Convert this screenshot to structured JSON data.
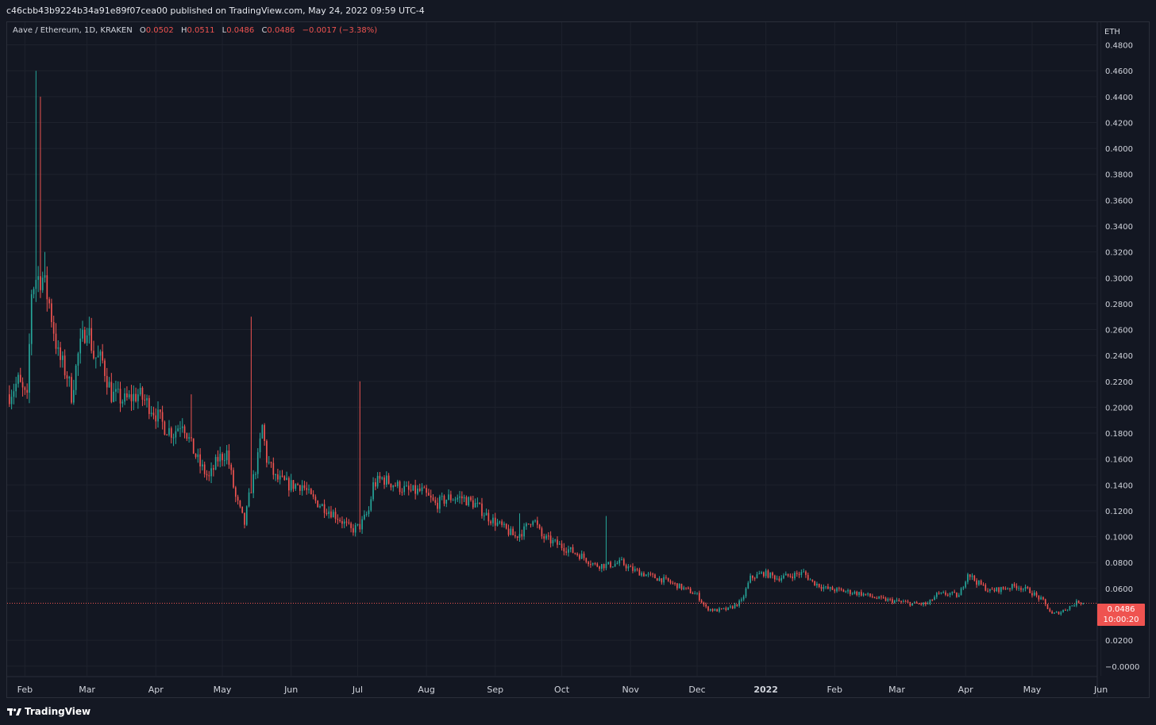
{
  "header": {
    "text": "c46cbb43b9224b34a91e89f07cea00 published on TradingView.com, May 24, 2022 09:59 UTC-4"
  },
  "legend": {
    "symbol": "Aave / Ethereum, 1D, KRAKEN",
    "o_label": "O",
    "o_value": "0.0502",
    "h_label": "H",
    "h_value": "0.0511",
    "l_label": "L",
    "l_value": "0.0486",
    "c_label": "C",
    "c_value": "0.0486",
    "change": "−0.0017 (−3.38%)"
  },
  "price_axis": {
    "currency": "ETH",
    "last_price": "0.0486",
    "countdown": "10:00:20"
  },
  "footer": {
    "brand": "TradingView"
  },
  "colors": {
    "up": "#26a69a",
    "down": "#ef5350",
    "background": "#131722",
    "grid": "#1e222d"
  },
  "chart_data": {
    "type": "candlestick",
    "title": "Aave / Ethereum, 1D, KRAKEN",
    "ylim": [
      -0.0075,
      0.4975
    ],
    "y_ticks": [
      "0.4800",
      "0.4600",
      "0.4400",
      "0.4200",
      "0.4000",
      "0.3800",
      "0.3600",
      "0.3400",
      "0.3200",
      "0.3000",
      "0.2800",
      "0.2600",
      "0.2400",
      "0.2200",
      "0.2000",
      "0.1800",
      "0.1600",
      "0.1400",
      "0.1200",
      "0.1000",
      "0.0800",
      "0.0600",
      "0.0486",
      "0.0200",
      "−0.0000"
    ],
    "x_tick_labels": [
      "Feb",
      "Mar",
      "Apr",
      "May",
      "Jun",
      "Jul",
      "Aug",
      "Sep",
      "Oct",
      "Nov",
      "Dec",
      "2022",
      "Feb",
      "Mar",
      "Apr",
      "May",
      "Jun"
    ],
    "x_label_positions_days": [
      7,
      35,
      66,
      96,
      127,
      157,
      188,
      219,
      249,
      280,
      310,
      341,
      372,
      400,
      431,
      461,
      492
    ],
    "grid": true,
    "last_close": 0.0486,
    "trend_points": [
      [
        0,
        0.21
      ],
      [
        4,
        0.22
      ],
      [
        8,
        0.205
      ],
      [
        10,
        0.29
      ],
      [
        12,
        0.3
      ],
      [
        15,
        0.3
      ],
      [
        18,
        0.28
      ],
      [
        22,
        0.24
      ],
      [
        26,
        0.225
      ],
      [
        28,
        0.21
      ],
      [
        31,
        0.24
      ],
      [
        35,
        0.265
      ],
      [
        38,
        0.24
      ],
      [
        42,
        0.235
      ],
      [
        46,
        0.21
      ],
      [
        52,
        0.205
      ],
      [
        58,
        0.21
      ],
      [
        64,
        0.2
      ],
      [
        70,
        0.185
      ],
      [
        74,
        0.18
      ],
      [
        78,
        0.19
      ],
      [
        82,
        0.17
      ],
      [
        86,
        0.155
      ],
      [
        90,
        0.145
      ],
      [
        94,
        0.16
      ],
      [
        98,
        0.165
      ],
      [
        102,
        0.13
      ],
      [
        106,
        0.11
      ],
      [
        108,
        0.13
      ],
      [
        112,
        0.16
      ],
      [
        114,
        0.185
      ],
      [
        116,
        0.16
      ],
      [
        120,
        0.145
      ],
      [
        126,
        0.14
      ],
      [
        132,
        0.14
      ],
      [
        136,
        0.13
      ],
      [
        140,
        0.125
      ],
      [
        146,
        0.118
      ],
      [
        150,
        0.112
      ],
      [
        154,
        0.105
      ],
      [
        158,
        0.108
      ],
      [
        162,
        0.12
      ],
      [
        164,
        0.14
      ],
      [
        168,
        0.145
      ],
      [
        174,
        0.14
      ],
      [
        180,
        0.135
      ],
      [
        186,
        0.135
      ],
      [
        192,
        0.125
      ],
      [
        198,
        0.13
      ],
      [
        204,
        0.13
      ],
      [
        210,
        0.125
      ],
      [
        216,
        0.115
      ],
      [
        220,
        0.11
      ],
      [
        224,
        0.105
      ],
      [
        228,
        0.1
      ],
      [
        232,
        0.105
      ],
      [
        236,
        0.115
      ],
      [
        240,
        0.1
      ],
      [
        246,
        0.095
      ],
      [
        252,
        0.09
      ],
      [
        258,
        0.085
      ],
      [
        264,
        0.078
      ],
      [
        270,
        0.078
      ],
      [
        276,
        0.08
      ],
      [
        280,
        0.075
      ],
      [
        288,
        0.07
      ],
      [
        296,
        0.066
      ],
      [
        304,
        0.06
      ],
      [
        310,
        0.055
      ],
      [
        314,
        0.045
      ],
      [
        318,
        0.043
      ],
      [
        324,
        0.044
      ],
      [
        330,
        0.05
      ],
      [
        334,
        0.068
      ],
      [
        340,
        0.072
      ],
      [
        346,
        0.068
      ],
      [
        352,
        0.07
      ],
      [
        358,
        0.072
      ],
      [
        362,
        0.065
      ],
      [
        368,
        0.06
      ],
      [
        376,
        0.058
      ],
      [
        384,
        0.056
      ],
      [
        392,
        0.052
      ],
      [
        400,
        0.05
      ],
      [
        408,
        0.048
      ],
      [
        414,
        0.048
      ],
      [
        418,
        0.055
      ],
      [
        424,
        0.056
      ],
      [
        428,
        0.054
      ],
      [
        432,
        0.072
      ],
      [
        436,
        0.065
      ],
      [
        442,
        0.058
      ],
      [
        448,
        0.06
      ],
      [
        454,
        0.062
      ],
      [
        460,
        0.058
      ],
      [
        466,
        0.05
      ],
      [
        470,
        0.04
      ],
      [
        474,
        0.042
      ],
      [
        478,
        0.046
      ],
      [
        482,
        0.05
      ],
      [
        484,
        0.0486
      ]
    ],
    "spikes": [
      {
        "day": 12,
        "high": 0.46
      },
      {
        "day": 14,
        "high": 0.44
      },
      {
        "day": 16,
        "high": 0.32
      },
      {
        "day": 109,
        "high": 0.27
      },
      {
        "day": 158,
        "high": 0.22
      },
      {
        "day": 230,
        "high": 0.118
      },
      {
        "day": 250,
        "high": 0.095
      },
      {
        "day": 269,
        "high": 0.116
      },
      {
        "day": 82,
        "high": 0.21
      },
      {
        "day": 36,
        "high": 0.27
      }
    ]
  }
}
